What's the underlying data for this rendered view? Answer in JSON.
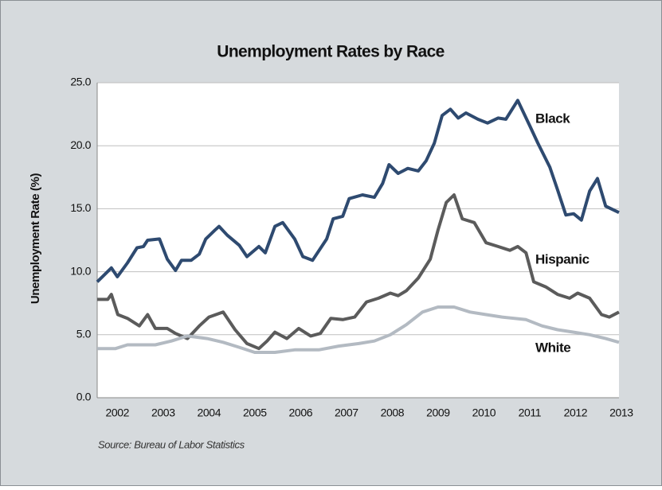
{
  "chart_data": {
    "type": "line",
    "title": "Unemployment Rates by Race",
    "ylabel": "Unemployment Rate (%)",
    "source": "Source: Bureau of Labor Statistics",
    "xlim": [
      2002.06,
      2013.45
    ],
    "xticks": [
      {
        "value": 2002.5,
        "label": "2002"
      },
      {
        "value": 2003.5,
        "label": "2003"
      },
      {
        "value": 2004.5,
        "label": "2004"
      },
      {
        "value": 2005.5,
        "label": "2005"
      },
      {
        "value": 2006.5,
        "label": "2006"
      },
      {
        "value": 2007.5,
        "label": "2007"
      },
      {
        "value": 2008.5,
        "label": "2008"
      },
      {
        "value": 2009.5,
        "label": "2009"
      },
      {
        "value": 2010.5,
        "label": "2010"
      },
      {
        "value": 2011.5,
        "label": "2011"
      },
      {
        "value": 2012.5,
        "label": "2012"
      },
      {
        "value": 2013.5,
        "label": "2013"
      }
    ],
    "ylim": [
      0,
      25
    ],
    "yticks": [
      {
        "value": 0,
        "label": "0.0"
      },
      {
        "value": 5,
        "label": "5.0"
      },
      {
        "value": 10,
        "label": "10.0"
      },
      {
        "value": 15,
        "label": "15.0"
      },
      {
        "value": 20,
        "label": "20.0"
      },
      {
        "value": 25,
        "label": "25.0"
      }
    ],
    "grid": true,
    "series": [
      {
        "name": "Black",
        "color": "#2e4a70",
        "x": [
          2002.06,
          2002.37,
          2002.5,
          2002.72,
          2002.93,
          2003.07,
          2003.16,
          2003.42,
          2003.59,
          2003.77,
          2003.9,
          2004.11,
          2004.29,
          2004.43,
          2004.63,
          2004.72,
          2004.9,
          2005.16,
          2005.33,
          2005.59,
          2005.73,
          2005.94,
          2006.11,
          2006.37,
          2006.55,
          2006.76,
          2007.07,
          2007.21,
          2007.42,
          2007.56,
          2007.85,
          2008.11,
          2008.29,
          2008.43,
          2008.63,
          2008.84,
          2009.07,
          2009.24,
          2009.42,
          2009.59,
          2009.77,
          2009.94,
          2010.11,
          2010.37,
          2010.58,
          2010.81,
          2010.98,
          2011.24,
          2011.5,
          2011.68,
          2011.94,
          2012.11,
          2012.29,
          2012.46,
          2012.63,
          2012.81,
          2012.98,
          2013.16,
          2013.45
        ],
        "values": [
          9.2,
          10.3,
          9.6,
          10.7,
          11.9,
          12.0,
          12.5,
          12.6,
          11.0,
          10.1,
          10.9,
          10.9,
          11.4,
          12.6,
          13.3,
          13.6,
          12.9,
          12.1,
          11.2,
          12.0,
          11.5,
          13.6,
          13.9,
          12.6,
          11.2,
          10.9,
          12.6,
          14.2,
          14.4,
          15.8,
          16.1,
          15.9,
          17.0,
          18.5,
          17.8,
          18.2,
          18.0,
          18.8,
          20.2,
          22.4,
          22.9,
          22.2,
          22.6,
          22.1,
          21.8,
          22.2,
          22.1,
          23.6,
          21.6,
          20.2,
          18.3,
          16.5,
          14.5,
          14.6,
          14.1,
          16.4,
          17.4,
          15.2,
          14.7
        ]
      },
      {
        "name": "Hispanic",
        "color": "#5b5b5b",
        "x": [
          2002.06,
          2002.29,
          2002.37,
          2002.51,
          2002.72,
          2002.98,
          2003.16,
          2003.33,
          2003.59,
          2003.77,
          2004.03,
          2004.29,
          2004.5,
          2004.81,
          2005.07,
          2005.33,
          2005.59,
          2005.77,
          2005.94,
          2006.2,
          2006.46,
          2006.72,
          2006.93,
          2007.16,
          2007.42,
          2007.68,
          2007.94,
          2008.2,
          2008.46,
          2008.63,
          2008.81,
          2009.07,
          2009.33,
          2009.5,
          2009.68,
          2009.85,
          2010.03,
          2010.29,
          2010.55,
          2010.81,
          2011.07,
          2011.24,
          2011.42,
          2011.59,
          2011.85,
          2012.11,
          2012.37,
          2012.55,
          2012.81,
          2013.07,
          2013.24,
          2013.45
        ],
        "values": [
          7.8,
          7.8,
          8.2,
          6.6,
          6.3,
          5.7,
          6.6,
          5.5,
          5.5,
          5.1,
          4.7,
          5.7,
          6.4,
          6.8,
          5.4,
          4.3,
          3.9,
          4.5,
          5.2,
          4.7,
          5.5,
          4.9,
          5.1,
          6.3,
          6.2,
          6.4,
          7.6,
          7.9,
          8.3,
          8.1,
          8.5,
          9.5,
          11.0,
          13.3,
          15.5,
          16.1,
          14.2,
          13.9,
          12.3,
          12.0,
          11.7,
          12.0,
          11.5,
          9.2,
          8.8,
          8.2,
          7.9,
          8.3,
          7.9,
          6.6,
          6.4,
          6.8
        ]
      },
      {
        "name": "White",
        "color": "#b3bac2",
        "x": [
          2002.06,
          2002.46,
          2002.72,
          2003.33,
          2003.68,
          2004.03,
          2004.46,
          2004.81,
          2005.16,
          2005.5,
          2005.94,
          2006.37,
          2006.9,
          2007.33,
          2007.77,
          2008.11,
          2008.46,
          2008.81,
          2009.16,
          2009.5,
          2009.85,
          2010.2,
          2010.55,
          2010.9,
          2011.42,
          2011.77,
          2012.11,
          2012.46,
          2012.81,
          2013.16,
          2013.45
        ],
        "values": [
          3.9,
          3.9,
          4.2,
          4.2,
          4.5,
          4.9,
          4.7,
          4.4,
          4.0,
          3.6,
          3.6,
          3.8,
          3.8,
          4.1,
          4.3,
          4.5,
          5.0,
          5.8,
          6.8,
          7.2,
          7.2,
          6.8,
          6.6,
          6.4,
          6.2,
          5.7,
          5.4,
          5.2,
          5.0,
          4.7,
          4.4
        ]
      }
    ]
  }
}
